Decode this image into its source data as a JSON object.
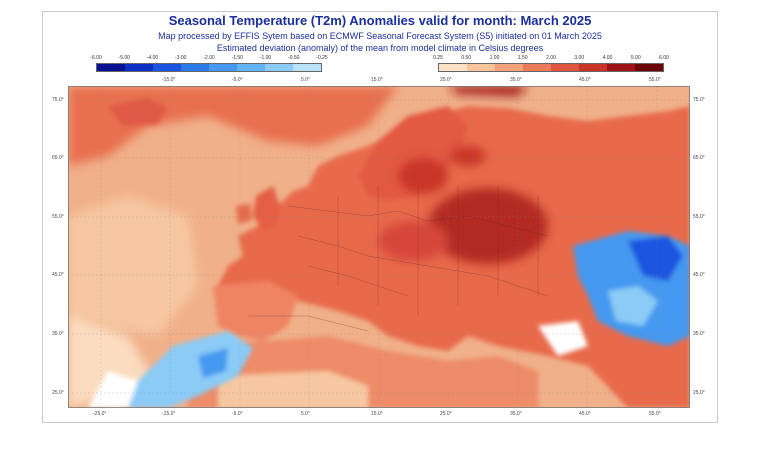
{
  "header": {
    "title": "Seasonal Temperature (T2m) Anomalies valid for month: March 2025",
    "subtitle": "Map processed by EFFIS Sytem based on ECMWF Seasonal Forecast System (S5) initiated on 01 March 2025",
    "description": "Estimated deviation (anomaly) of the mean from model climate in Celsius degrees"
  },
  "colorbar_negative": {
    "labels": [
      "-6.00",
      "-5.00",
      "-4.00",
      "-3.00",
      "-2.00",
      "-1.50",
      "-1.00",
      "-0.50",
      "-0.25"
    ],
    "colors": [
      "#05128f",
      "#0b2fc4",
      "#1b54e0",
      "#2c7ae8",
      "#4599f0",
      "#63b4f4",
      "#8bcbf6",
      "#b7e2fa"
    ]
  },
  "colorbar_positive": {
    "labels": [
      "0.25",
      "0.50",
      "1.00",
      "1.50",
      "2.00",
      "3.00",
      "4.00",
      "5.00",
      "6.00"
    ],
    "colors": [
      "#fce0c3",
      "#f9c39c",
      "#f4a27c",
      "#ec7b5a",
      "#df5640",
      "#c93428",
      "#9e1414",
      "#6a0606"
    ]
  },
  "map": {
    "lon_ticks": [
      "-25.0°",
      "-15.0°",
      "-5.0°",
      "5.0°",
      "15.0°",
      "25.0°",
      "35.0°",
      "45.0°",
      "55.0°"
    ],
    "top_lon_ticks": [
      "-15.0°",
      "-5.0°",
      "5.0°",
      "15.0°",
      "25.0°",
      "35.0°",
      "45.0°",
      "55.0°"
    ],
    "lat_ticks": [
      "75.0°",
      "65.0°",
      "55.0°",
      "45.0°",
      "35.0°",
      "25.0°"
    ],
    "ocean_color": "#f0b08a",
    "land_color": "#e86a4c"
  }
}
